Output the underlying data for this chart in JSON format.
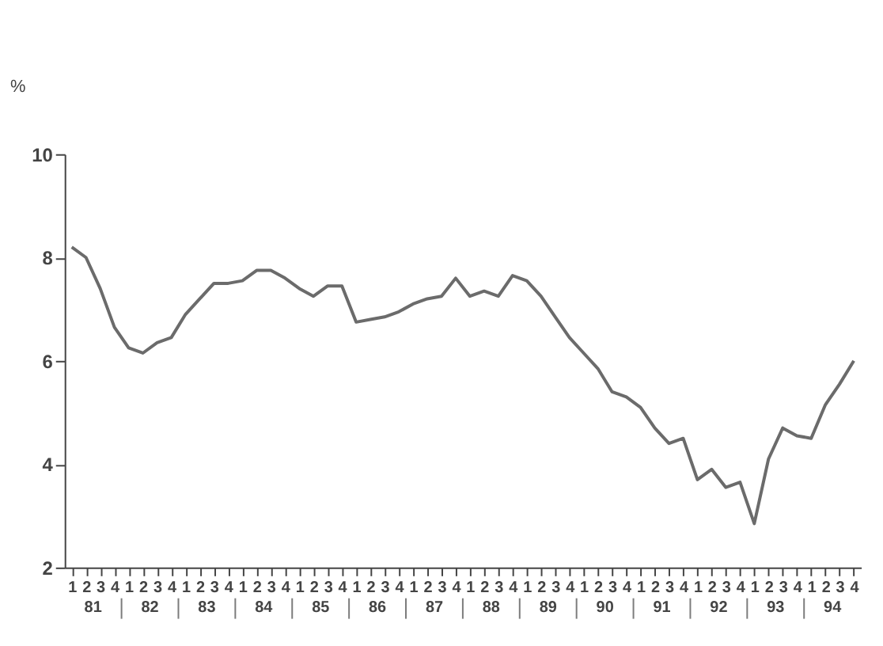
{
  "chart_data": {
    "type": "line",
    "ylabel": "%",
    "categories": [
      "1",
      "2",
      "3",
      "4",
      "1",
      "2",
      "3",
      "4",
      "1",
      "2",
      "3",
      "4",
      "1",
      "2",
      "3",
      "4",
      "1",
      "2",
      "3",
      "4",
      "1",
      "2",
      "3",
      "4",
      "1",
      "2",
      "3",
      "4",
      "1",
      "2",
      "3",
      "4",
      "1",
      "2",
      "3",
      "4",
      "1",
      "2",
      "3",
      "4",
      "1",
      "2",
      "3",
      "4",
      "1",
      "2",
      "3",
      "4",
      "1",
      "2",
      "3",
      "4",
      "1",
      "2",
      "3",
      "4"
    ],
    "series": [
      {
        "color": "#6b6b6b",
        "values": [
          8.2,
          8.0,
          7.4,
          6.65,
          6.25,
          6.15,
          6.35,
          6.45,
          6.9,
          7.2,
          7.5,
          7.5,
          7.55,
          7.75,
          7.75,
          7.6,
          7.4,
          7.25,
          7.45,
          7.45,
          6.75,
          6.8,
          6.85,
          6.95,
          7.1,
          7.2,
          7.25,
          7.6,
          7.25,
          7.35,
          7.25,
          7.65,
          7.55,
          7.25,
          6.85,
          6.45,
          6.15,
          5.85,
          5.4,
          5.3,
          5.1,
          4.7,
          4.4,
          4.5,
          3.7,
          3.9,
          3.55,
          3.65,
          2.85,
          4.1,
          4.7,
          4.55,
          4.5,
          5.15,
          5.55,
          6.0
        ]
      }
    ],
    "annotations": [
      "81",
      "82",
      "83",
      "84",
      "85",
      "86",
      "87",
      "88",
      "89",
      "90",
      "91",
      "92",
      "93",
      "94"
    ],
    "ylim": [
      2,
      10
    ],
    "yticks": [
      2,
      4,
      6,
      8,
      10
    ],
    "line_style": "solid"
  }
}
